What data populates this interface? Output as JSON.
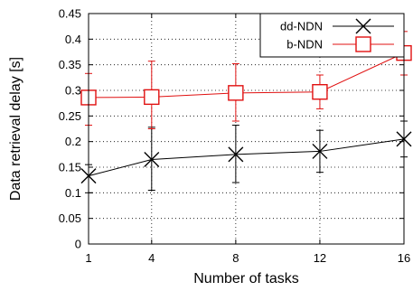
{
  "chart_data": {
    "type": "line",
    "title": "",
    "xlabel": "Number of tasks",
    "ylabel": "Data retrieval delay [s]",
    "x": [
      1,
      4,
      8,
      12,
      16
    ],
    "x_tick_labels": [
      "1",
      "4",
      "8",
      "12",
      "16"
    ],
    "xlim": [
      1,
      16
    ],
    "ylim": [
      0,
      0.45
    ],
    "y_ticks": [
      0,
      0.05,
      0.1,
      0.15,
      0.2,
      0.25,
      0.3,
      0.35,
      0.4,
      0.45
    ],
    "y_tick_labels": [
      "0",
      "0.05",
      "0.1",
      "0.15",
      "0.2",
      "0.25",
      "0.3",
      "0.35",
      "0.4",
      "0.45"
    ],
    "grid": true,
    "legend_position": "top-right",
    "series": [
      {
        "name": "dd-NDN",
        "color": "#000000",
        "marker": "x",
        "values": [
          0.133,
          0.165,
          0.175,
          0.181,
          0.205
        ],
        "error_low": [
          0.1,
          0.105,
          0.12,
          0.14,
          0.17
        ],
        "error_high": [
          0.155,
          0.228,
          0.232,
          0.222,
          0.24
        ]
      },
      {
        "name": "b-NDN",
        "color": "#e01010",
        "marker": "square",
        "values": [
          0.286,
          0.287,
          0.295,
          0.297,
          0.373
        ],
        "error_low": [
          0.232,
          0.225,
          0.24,
          0.264,
          0.33
        ],
        "error_high": [
          0.333,
          0.357,
          0.352,
          0.33,
          0.415
        ]
      }
    ]
  }
}
